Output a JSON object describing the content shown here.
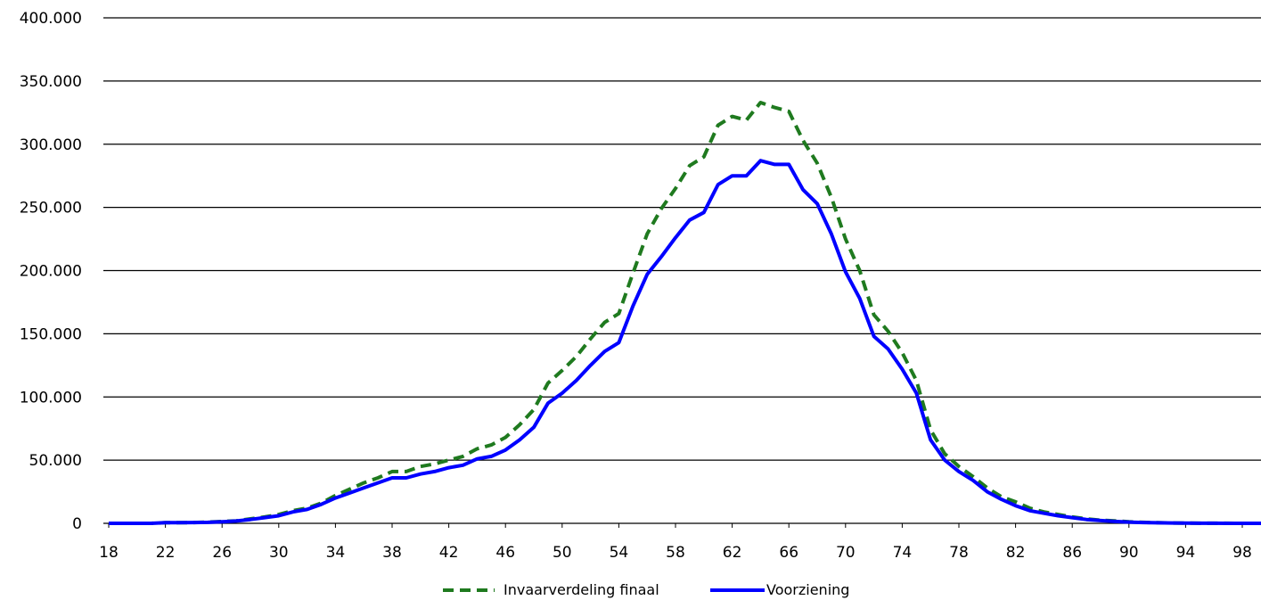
{
  "chart_data": {
    "type": "line",
    "title": "",
    "xlabel": "",
    "ylabel": "",
    "xlim": [
      18,
      100
    ],
    "ylim": [
      0,
      400000
    ],
    "y_ticks": [
      0,
      50000,
      100000,
      150000,
      200000,
      250000,
      300000,
      350000,
      400000
    ],
    "y_tick_labels": [
      "0",
      "50.000",
      "100.000",
      "150.000",
      "200.000",
      "250.000",
      "300.000",
      "350.000",
      "400.000"
    ],
    "x_tick_labels": [
      "18",
      "22",
      "26",
      "30",
      "34",
      "38",
      "42",
      "46",
      "50",
      "54",
      "58",
      "62",
      "66",
      "70",
      "74",
      "78",
      "82",
      "86",
      "90",
      "94",
      "98"
    ],
    "grid": "horizontal",
    "legend_position": "bottom",
    "x": [
      18,
      19,
      20,
      21,
      22,
      23,
      24,
      25,
      26,
      27,
      28,
      29,
      30,
      31,
      32,
      33,
      34,
      35,
      36,
      37,
      38,
      39,
      40,
      41,
      42,
      43,
      44,
      45,
      46,
      47,
      48,
      49,
      50,
      51,
      52,
      53,
      54,
      55,
      56,
      57,
      58,
      59,
      60,
      61,
      62,
      63,
      64,
      65,
      66,
      67,
      68,
      69,
      70,
      71,
      72,
      73,
      74,
      75,
      76,
      77,
      78,
      79,
      80,
      81,
      82,
      83,
      84,
      85,
      86,
      87,
      88,
      89,
      90,
      91,
      92,
      93,
      94,
      95,
      96,
      97,
      98,
      99,
      100
    ],
    "series": [
      {
        "name": "Invaarverdeling finaal",
        "color": "#1f7a1f",
        "style": "dashed",
        "values": [
          0,
          0,
          0,
          0,
          500,
          500,
          600,
          1000,
          1500,
          2000,
          3500,
          5000,
          7000,
          10000,
          12000,
          16000,
          22000,
          27000,
          32000,
          36000,
          41000,
          41000,
          45000,
          47000,
          50000,
          53000,
          59000,
          62000,
          68000,
          78000,
          90000,
          111000,
          121000,
          132000,
          146000,
          159000,
          166000,
          198000,
          229000,
          249000,
          265000,
          283000,
          290000,
          315000,
          322000,
          319000,
          333000,
          329000,
          326000,
          303000,
          285000,
          258000,
          225000,
          200000,
          165000,
          152000,
          135000,
          113000,
          74000,
          55000,
          45000,
          37000,
          28000,
          21000,
          17000,
          12000,
          9000,
          7000,
          5000,
          3500,
          2500,
          2000,
          1200,
          800,
          500,
          300,
          200,
          100,
          100,
          50,
          20,
          10,
          0
        ]
      },
      {
        "name": "Voorziening",
        "color": "#0000ff",
        "style": "solid",
        "values": [
          0,
          0,
          0,
          0,
          500,
          500,
          600,
          800,
          1200,
          1800,
          3000,
          4500,
          6000,
          9000,
          11000,
          15000,
          20000,
          24000,
          28000,
          32000,
          36000,
          36000,
          39000,
          41000,
          44000,
          46000,
          51000,
          53000,
          58000,
          66000,
          76000,
          95000,
          103000,
          113000,
          125000,
          136000,
          143000,
          172000,
          197000,
          211000,
          226000,
          240000,
          246000,
          268000,
          275000,
          275000,
          287000,
          284000,
          284000,
          264000,
          253000,
          229000,
          199000,
          178000,
          148000,
          138000,
          122000,
          103000,
          66000,
          50000,
          41000,
          34000,
          25000,
          19000,
          14000,
          10000,
          8000,
          6000,
          4500,
          3000,
          2200,
          1500,
          1000,
          600,
          400,
          250,
          150,
          80,
          60,
          30,
          15,
          8,
          0
        ]
      }
    ]
  }
}
